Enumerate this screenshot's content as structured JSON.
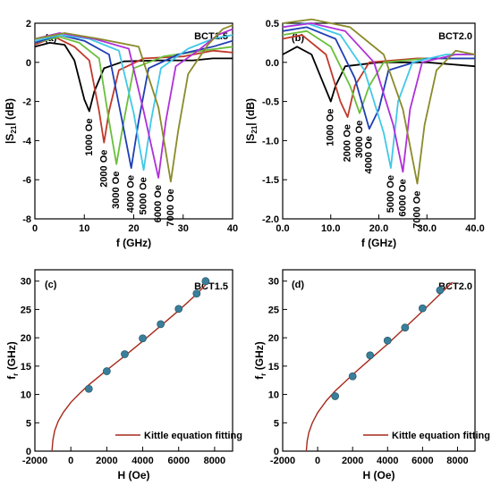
{
  "chart_data": [
    {
      "panel": "(a)",
      "type": "line",
      "sample": "BCT1.5",
      "xlabel": "f (GHz)",
      "ylabel": "|S21| (dB)",
      "xlim": [
        0,
        40
      ],
      "ylim": [
        -8,
        2
      ],
      "xticks": [
        0,
        10,
        20,
        30,
        40
      ],
      "yticks": [
        -8,
        -6,
        -4,
        -2,
        0,
        2
      ],
      "series": [
        {
          "name": "1000 Oe",
          "color": "#000000",
          "points": [
            [
              0,
              0.8
            ],
            [
              3,
              1.0
            ],
            [
              6,
              0.9
            ],
            [
              8,
              0.1
            ],
            [
              10,
              -1.9
            ],
            [
              11,
              -2.5
            ],
            [
              12,
              -1.5
            ],
            [
              14,
              -0.3
            ],
            [
              18,
              0.05
            ],
            [
              25,
              0.1
            ],
            [
              32,
              0.1
            ],
            [
              36,
              0.2
            ],
            [
              40,
              0.2
            ]
          ]
        },
        {
          "name": "2000 Oe",
          "color": "#c0392b",
          "points": [
            [
              0,
              0.9
            ],
            [
              4,
              1.3
            ],
            [
              8,
              0.8
            ],
            [
              11,
              0.1
            ],
            [
              13,
              -2.5
            ],
            [
              14,
              -4.1
            ],
            [
              15,
              -2.5
            ],
            [
              17,
              -0.4
            ],
            [
              22,
              0.2
            ],
            [
              30,
              0.3
            ],
            [
              36,
              0.6
            ],
            [
              40,
              0.5
            ]
          ]
        },
        {
          "name": "3000 Oe",
          "color": "#6abf3b",
          "points": [
            [
              0,
              1.0
            ],
            [
              5,
              1.3
            ],
            [
              9,
              1.0
            ],
            [
              13,
              0.2
            ],
            [
              15,
              -3.0
            ],
            [
              16.5,
              -5.2
            ],
            [
              18,
              -3.0
            ],
            [
              20,
              -0.3
            ],
            [
              26,
              0.3
            ],
            [
              34,
              0.6
            ],
            [
              40,
              0.8
            ]
          ]
        },
        {
          "name": "4000 Oe",
          "color": "#1f3fb3",
          "points": [
            [
              0,
              1.0
            ],
            [
              5,
              1.4
            ],
            [
              10,
              1.1
            ],
            [
              15,
              0.4
            ],
            [
              17.5,
              -2.8
            ],
            [
              19.5,
              -5.4
            ],
            [
              21,
              -3.0
            ],
            [
              23,
              -0.3
            ],
            [
              29,
              0.4
            ],
            [
              36,
              0.8
            ],
            [
              40,
              1.1
            ]
          ]
        },
        {
          "name": "5000 Oe",
          "color": "#40c8e8",
          "points": [
            [
              0,
              1.1
            ],
            [
              5,
              1.4
            ],
            [
              11,
              1.2
            ],
            [
              17,
              0.6
            ],
            [
              20,
              -2.6
            ],
            [
              22,
              -5.5
            ],
            [
              23.5,
              -3.0
            ],
            [
              25.5,
              -0.3
            ],
            [
              31,
              0.7
            ],
            [
              36,
              1.2
            ],
            [
              40,
              1.4
            ]
          ]
        },
        {
          "name": "6000 Oe",
          "color": "#b030d8",
          "points": [
            [
              0,
              1.2
            ],
            [
              5,
              1.5
            ],
            [
              12,
              1.2
            ],
            [
              19,
              0.7
            ],
            [
              22,
              -2.5
            ],
            [
              25,
              -5.9
            ],
            [
              26.5,
              -3.0
            ],
            [
              28.5,
              -0.2
            ],
            [
              33,
              0.6
            ],
            [
              37,
              1.4
            ],
            [
              40,
              1.7
            ]
          ]
        },
        {
          "name": "7000 Oe",
          "color": "#8a8a2a",
          "points": [
            [
              0,
              1.2
            ],
            [
              6,
              1.5
            ],
            [
              13,
              1.2
            ],
            [
              21,
              0.8
            ],
            [
              25,
              -2.3
            ],
            [
              27.5,
              -6.1
            ],
            [
              29,
              -3.5
            ],
            [
              31,
              -0.6
            ],
            [
              35,
              0.9
            ],
            [
              38,
              1.7
            ],
            [
              40,
              1.9
            ]
          ]
        }
      ]
    },
    {
      "panel": "(b)",
      "type": "line",
      "sample": "BCT2.0",
      "xlabel": "f (GHz)",
      "ylabel": "|S21| (dB)",
      "xlim": [
        0,
        40
      ],
      "ylim": [
        -2.0,
        0.5
      ],
      "xticks": [
        0,
        10,
        20,
        30,
        40
      ],
      "yticks": [
        -2.0,
        -1.5,
        -1.0,
        -0.5,
        0.0,
        0.5
      ],
      "series": [
        {
          "name": "1000 Oe",
          "color": "#000000",
          "points": [
            [
              0,
              0.1
            ],
            [
              3,
              0.2
            ],
            [
              6,
              0.1
            ],
            [
              8,
              -0.2
            ],
            [
              10,
              -0.5
            ],
            [
              11,
              -0.3
            ],
            [
              13,
              -0.05
            ],
            [
              20,
              0.0
            ],
            [
              30,
              0.0
            ],
            [
              40,
              -0.05
            ]
          ]
        },
        {
          "name": "2000 Oe",
          "color": "#c0392b",
          "points": [
            [
              0,
              0.3
            ],
            [
              4,
              0.35
            ],
            [
              9,
              0.1
            ],
            [
              12,
              -0.5
            ],
            [
              13.5,
              -0.7
            ],
            [
              15,
              -0.3
            ],
            [
              18,
              0.0
            ],
            [
              28,
              0.05
            ],
            [
              40,
              0.05
            ]
          ]
        },
        {
          "name": "3000 Oe",
          "color": "#6abf3b",
          "points": [
            [
              0,
              0.35
            ],
            [
              5,
              0.4
            ],
            [
              10,
              0.2
            ],
            [
              14,
              -0.3
            ],
            [
              16,
              -0.65
            ],
            [
              18,
              -0.3
            ],
            [
              21,
              0.0
            ],
            [
              30,
              0.05
            ],
            [
              40,
              0.05
            ]
          ]
        },
        {
          "name": "4000 Oe",
          "color": "#1f3fb3",
          "points": [
            [
              0,
              0.4
            ],
            [
              5,
              0.45
            ],
            [
              11,
              0.3
            ],
            [
              15,
              -0.2
            ],
            [
              18,
              -0.85
            ],
            [
              20,
              -0.6
            ],
            [
              22,
              -0.1
            ],
            [
              30,
              0.05
            ],
            [
              40,
              0.05
            ]
          ]
        },
        {
          "name": "5000 Oe",
          "color": "#40c8e8",
          "points": [
            [
              0,
              0.45
            ],
            [
              5,
              0.5
            ],
            [
              12,
              0.35
            ],
            [
              17,
              -0.1
            ],
            [
              21,
              -0.9
            ],
            [
              22.5,
              -1.35
            ],
            [
              24,
              -0.5
            ],
            [
              27,
              0.0
            ],
            [
              34,
              0.1
            ],
            [
              40,
              0.1
            ]
          ]
        },
        {
          "name": "6000 Oe",
          "color": "#b030d8",
          "points": [
            [
              0,
              0.45
            ],
            [
              6,
              0.5
            ],
            [
              13,
              0.4
            ],
            [
              19,
              0.0
            ],
            [
              23,
              -0.8
            ],
            [
              25,
              -1.4
            ],
            [
              26.5,
              -0.6
            ],
            [
              29,
              0.0
            ],
            [
              36,
              0.1
            ],
            [
              40,
              0.1
            ]
          ]
        },
        {
          "name": "7000 Oe",
          "color": "#8a8a2a",
          "points": [
            [
              0,
              0.5
            ],
            [
              6,
              0.55
            ],
            [
              14,
              0.45
            ],
            [
              21,
              0.1
            ],
            [
              25,
              -0.6
            ],
            [
              28,
              -1.55
            ],
            [
              29.5,
              -0.8
            ],
            [
              32,
              -0.1
            ],
            [
              36,
              0.15
            ],
            [
              40,
              0.1
            ]
          ]
        }
      ]
    },
    {
      "panel": "(c)",
      "type": "scatter",
      "sample": "BCT1.5",
      "xlabel": "H (Oe)",
      "ylabel": "fr (GHz)",
      "xlim": [
        -2000,
        9000
      ],
      "ylim": [
        0,
        32
      ],
      "xticks": [
        -2000,
        0,
        2000,
        4000,
        6000,
        8000
      ],
      "yticks": [
        0,
        5,
        10,
        15,
        20,
        25,
        30
      ],
      "marker_color": "#3a7f9a",
      "fit_color": "#a52a1a",
      "fit_name": "Kittle equation fitting",
      "points": [
        [
          1000,
          11.0
        ],
        [
          2000,
          14.1
        ],
        [
          3000,
          17.1
        ],
        [
          4000,
          19.9
        ],
        [
          5000,
          22.4
        ],
        [
          6000,
          25.1
        ],
        [
          7000,
          27.8
        ],
        [
          7500,
          30.0
        ]
      ],
      "fit": [
        [
          -1050,
          0.0
        ],
        [
          -1000,
          1.9
        ],
        [
          -900,
          3.6
        ],
        [
          -700,
          5.3
        ],
        [
          -400,
          6.9
        ],
        [
          0,
          8.6
        ],
        [
          500,
          10.2
        ],
        [
          1000,
          11.7
        ],
        [
          2000,
          14.3
        ],
        [
          3000,
          16.8
        ],
        [
          4000,
          19.4
        ],
        [
          5000,
          22.1
        ],
        [
          6000,
          24.8
        ],
        [
          7000,
          27.7
        ],
        [
          7700,
          30.0
        ]
      ]
    },
    {
      "panel": "(d)",
      "type": "scatter",
      "sample": "BCT2.0",
      "xlabel": "H (Oe)",
      "ylabel": "fr (GHz)",
      "xlim": [
        -2000,
        9000
      ],
      "ylim": [
        0,
        32
      ],
      "xticks": [
        -2000,
        0,
        2000,
        4000,
        6000,
        8000
      ],
      "yticks": [
        0,
        5,
        10,
        15,
        20,
        25,
        30
      ],
      "marker_color": "#3a7f9a",
      "fit_color": "#a52a1a",
      "fit_name": "Kittle equation fitting",
      "points": [
        [
          1000,
          9.7
        ],
        [
          2000,
          13.2
        ],
        [
          3000,
          16.9
        ],
        [
          4000,
          19.5
        ],
        [
          5000,
          21.8
        ],
        [
          6000,
          25.2
        ],
        [
          7000,
          28.4
        ]
      ],
      "fit": [
        [
          -650,
          0.0
        ],
        [
          -600,
          1.8
        ],
        [
          -500,
          3.3
        ],
        [
          -300,
          5.0
        ],
        [
          0,
          6.8
        ],
        [
          500,
          8.9
        ],
        [
          1000,
          10.6
        ],
        [
          2000,
          13.5
        ],
        [
          3000,
          16.2
        ],
        [
          4000,
          18.9
        ],
        [
          5000,
          21.8
        ],
        [
          6000,
          24.7
        ],
        [
          7000,
          27.7
        ],
        [
          7700,
          29.8
        ]
      ]
    }
  ]
}
